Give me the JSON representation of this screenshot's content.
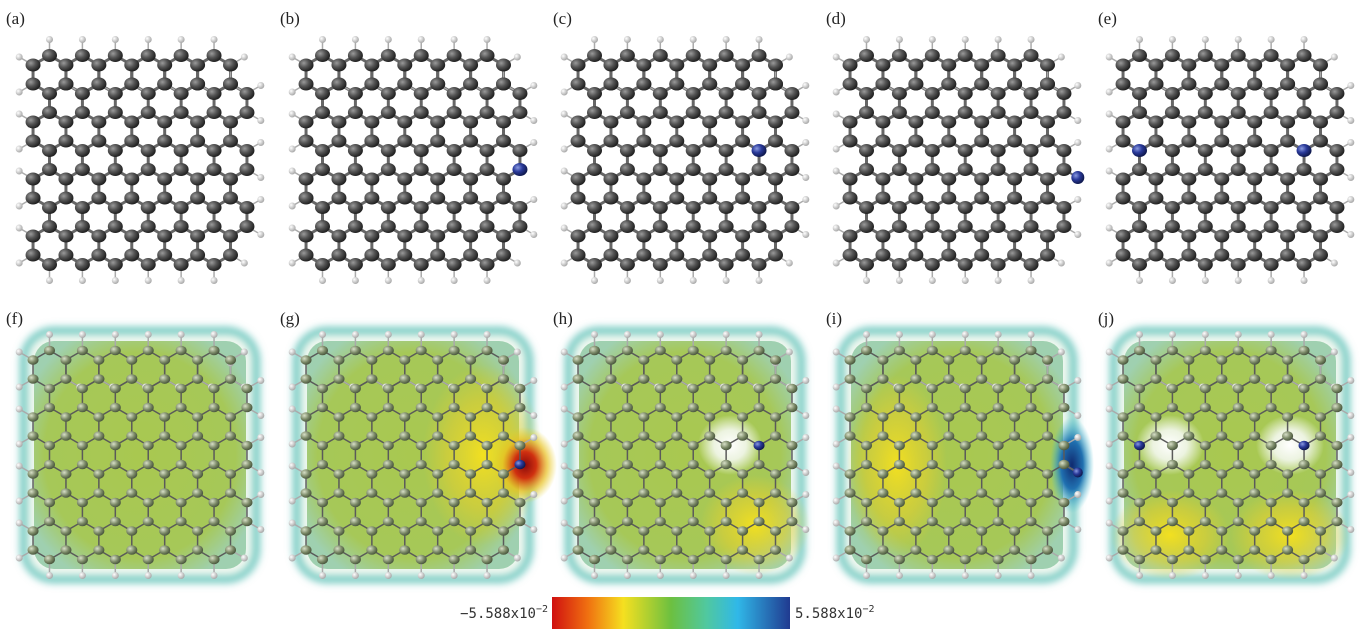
{
  "panels": {
    "top": [
      "(a)",
      "(b)",
      "(c)",
      "(d)",
      "(e)"
    ],
    "bottom": [
      "(f)",
      "(g)",
      "(h)",
      "(i)",
      "(j)"
    ]
  },
  "colorbar": {
    "min": {
      "base": "−5.588x10",
      "exponent": "−2"
    },
    "max": {
      "base": "5.588x10",
      "exponent": "−2"
    }
  }
}
